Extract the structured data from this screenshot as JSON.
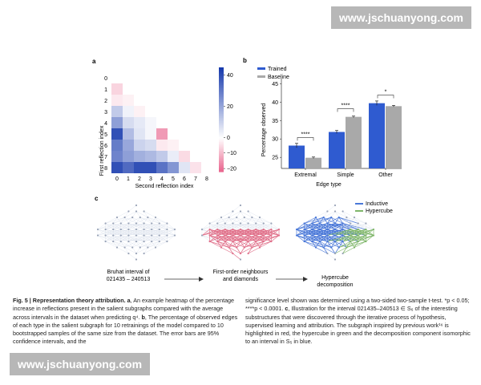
{
  "watermark": "www.jschuanyong.com",
  "panel_a": {
    "label": "a",
    "ylabel": "First reflection index",
    "xlabel": "Second reflection index",
    "ticks": [
      "0",
      "1",
      "2",
      "3",
      "4",
      "5",
      "6",
      "7",
      "8"
    ],
    "colorbar_ticks": [
      "40",
      "20",
      "0",
      "−10",
      "−20"
    ]
  },
  "panel_b": {
    "label": "b",
    "legend": [
      "Trained",
      "Baseline"
    ],
    "ylabel": "Percentage observed",
    "xlabel": "Edge type",
    "categories": [
      "Extremal",
      "Simple",
      "Other"
    ],
    "yticks": [
      "25",
      "30",
      "35",
      "40",
      "45"
    ],
    "significance": [
      "****",
      "****",
      "*"
    ]
  },
  "panel_c": {
    "label": "c",
    "legend": [
      "Inductive",
      "Hypercube"
    ],
    "label_1": "Bruhat interval of",
    "label_1b": "021435 – 240513",
    "label_2": "First-order neighbours",
    "label_2b": "and diamonds",
    "label_3": "Hypercube",
    "label_3b": "decomposition"
  },
  "colors": {
    "trained": "#2f5bd0",
    "baseline": "#a9a9a9",
    "inductive": "#4a78d8",
    "hypercube": "#7fb66a",
    "highlight": "#e0708a"
  },
  "chart_data": [
    {
      "type": "heatmap",
      "title": "",
      "xlabel": "Second reflection index",
      "ylabel": "First reflection index",
      "x": [
        0,
        1,
        2,
        3,
        4,
        5,
        6,
        7,
        8
      ],
      "y": [
        0,
        1,
        2,
        3,
        4,
        5,
        6,
        7,
        8
      ],
      "colorbar_range": [
        -20,
        45
      ],
      "values": [
        [
          null,
          null,
          null,
          null,
          null,
          null,
          null,
          null,
          null
        ],
        [
          -6,
          null,
          null,
          null,
          null,
          null,
          null,
          null,
          null
        ],
        [
          -3,
          -2,
          null,
          null,
          null,
          null,
          null,
          null,
          null
        ],
        [
          12,
          3,
          -2,
          null,
          null,
          null,
          null,
          null,
          null
        ],
        [
          22,
          8,
          5,
          2,
          null,
          null,
          null,
          null,
          null
        ],
        [
          40,
          15,
          6,
          2,
          -14,
          null,
          null,
          null,
          null
        ],
        [
          30,
          20,
          10,
          8,
          -3,
          -2,
          null,
          null,
          null
        ],
        [
          28,
          22,
          18,
          16,
          12,
          4,
          -5,
          null,
          null
        ],
        [
          40,
          34,
          40,
          40,
          32,
          24,
          6,
          -4,
          null
        ]
      ]
    },
    {
      "type": "bar",
      "title": "",
      "xlabel": "Edge type",
      "ylabel": "Percentage observed",
      "ylim": [
        20,
        45
      ],
      "categories": [
        "Extremal",
        "Simple",
        "Other"
      ],
      "series": [
        {
          "name": "Trained",
          "values": [
            28.2,
            31.9,
            39.7
          ]
        },
        {
          "name": "Baseline",
          "values": [
            24.9,
            36.0,
            38.9
          ]
        }
      ]
    }
  ],
  "caption_left": {
    "fig": "Fig. 5 | Representation theory attribution.",
    "a_label": "a",
    "a_text": ", An example heatmap of the percentage increase in reflections present in the salient subgraphs compared with the average across intervals in the dataset when predicting q⁴.",
    "b_label": "b",
    "b_text": ", The percentage of observed edges of each type in the salient subgraph for 10 retrainings of the model compared to 10 bootstrapped samples of the same size from the dataset. The error bars are 95% confidence intervals, and the"
  },
  "caption_right": {
    "text1": "significance level shown was determined using a two-sided two-sample t-test. *p < 0.05; ****p < 0.0001.",
    "c_label": "c",
    "text2": ", Illustration for the interval 021435–240513 ∈ S₆ of the interesting substructures that were discovered through the iterative process of hypothesis, supervised learning and attribution. The subgraph inspired by previous work¹⁶ is highlighted in red, the hypercube in green and the decomposition component isomorphic to an interval in S₅ in blue."
  }
}
